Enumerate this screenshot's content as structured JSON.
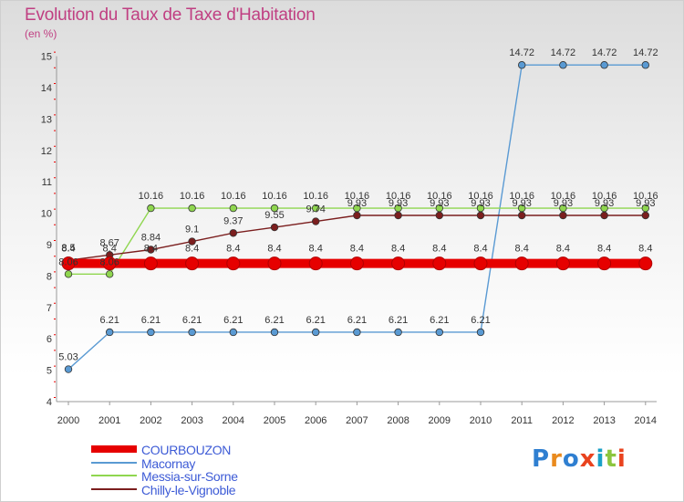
{
  "title": "Evolution du Taux de Taxe d'Habitation",
  "subtitle": "(en %)",
  "logo": {
    "text": "Proxiti",
    "colors": [
      "#2f7fd1",
      "#e98a1e",
      "#2f7fd1",
      "#e9431e",
      "#1aa1c7",
      "#8cc63f",
      "#e9431e"
    ]
  },
  "chart_data": {
    "type": "line",
    "x": [
      "2000",
      "2001",
      "2002",
      "2003",
      "2004",
      "2005",
      "2006",
      "2007",
      "2008",
      "2009",
      "2010",
      "2011",
      "2012",
      "2013",
      "2014"
    ],
    "ylim": [
      4,
      15
    ],
    "yticks": [
      "4",
      "5",
      "6",
      "7",
      "8",
      "9",
      "10",
      "11",
      "12",
      "13",
      "14",
      "15"
    ],
    "legend_position": "bottom-left",
    "series": [
      {
        "name": "COURBOUZON",
        "color": "#e60000",
        "values": [
          8.4,
          8.4,
          8.4,
          8.4,
          8.4,
          8.4,
          8.4,
          8.4,
          8.4,
          8.4,
          8.4,
          8.4,
          8.4,
          8.4,
          8.4
        ],
        "labels": [
          "8.4",
          "8.4",
          "8.4",
          "8.4",
          "8.4",
          "8.4",
          "8.4",
          "8.4",
          "8.4",
          "8.4",
          "8.4",
          "8.4",
          "8.4",
          "8.4",
          "8.4"
        ]
      },
      {
        "name": "Macornay",
        "color": "#5a9ad3",
        "values": [
          5.03,
          6.21,
          6.21,
          6.21,
          6.21,
          6.21,
          6.21,
          6.21,
          6.21,
          6.21,
          6.21,
          14.72,
          14.72,
          14.72,
          14.72
        ],
        "labels": [
          "5.03",
          "6.21",
          "6.21",
          "6.21",
          "6.21",
          "6.21",
          "6.21",
          "6.21",
          "6.21",
          "6.21",
          "6.21",
          "14.72",
          "14.72",
          "14.72",
          "14.72"
        ]
      },
      {
        "name": "Messia-sur-Sorne",
        "color": "#8fd64f",
        "values": [
          8.06,
          8.06,
          10.16,
          10.16,
          10.16,
          10.16,
          10.16,
          10.16,
          10.16,
          10.16,
          10.16,
          10.16,
          10.16,
          10.16,
          10.16
        ],
        "labels": [
          "8.06",
          "8.06",
          "10.16",
          "10.16",
          "10.16",
          "10.16",
          "10.16",
          "10.16",
          "10.16",
          "10.16",
          "10.16",
          "10.16",
          "10.16",
          "10.16",
          "10.16"
        ]
      },
      {
        "name": "Chilly-le-Vignoble",
        "color": "#7b1e1e",
        "values": [
          8.5,
          8.67,
          8.84,
          9.1,
          9.37,
          9.55,
          9.74,
          9.93,
          9.93,
          9.93,
          9.93,
          9.93,
          9.93,
          9.93,
          9.93
        ],
        "labels": [
          "8.5",
          "8.67",
          "8.84",
          "9.1",
          "9.37",
          "9.55",
          "9.74",
          "9.93",
          "9.93",
          "9.93",
          "9.93",
          "9.93",
          "9.93",
          "9.93",
          "9.93"
        ]
      }
    ]
  }
}
